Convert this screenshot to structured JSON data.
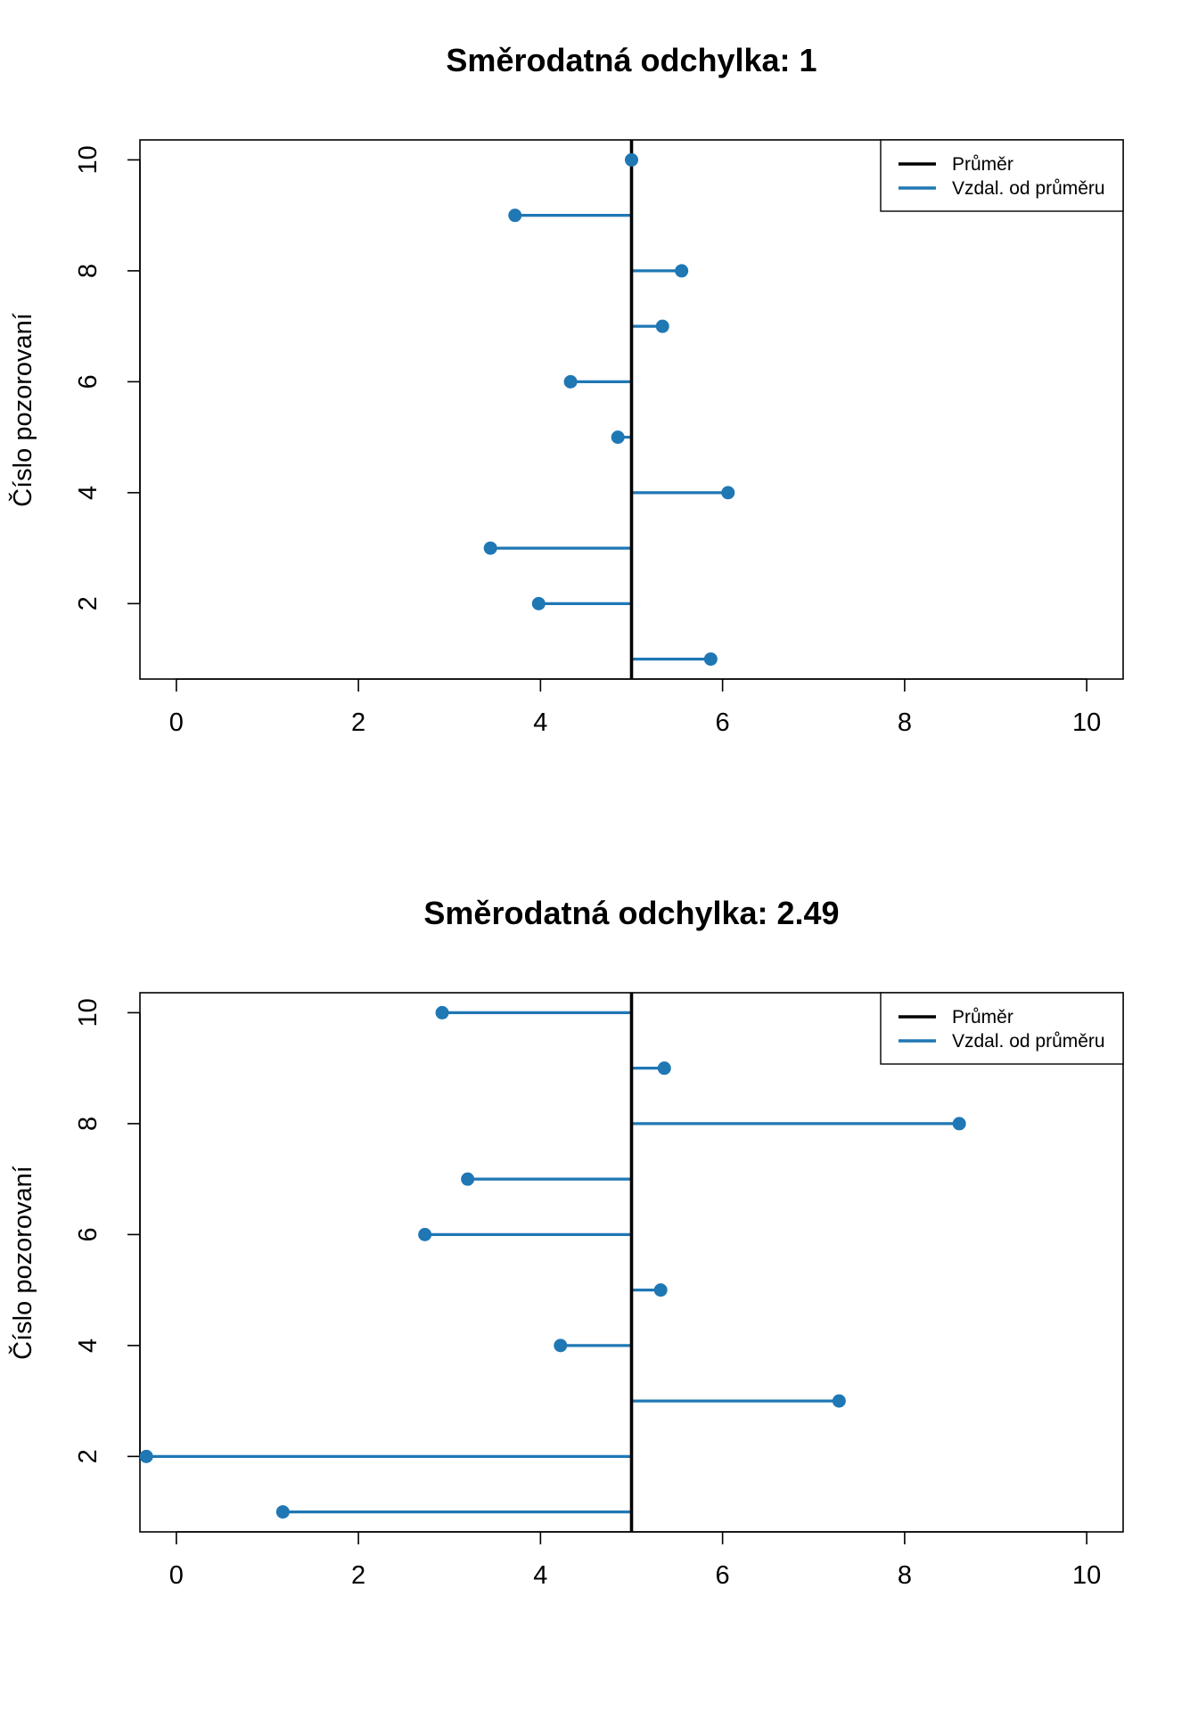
{
  "colors": {
    "mean_line": "#000000",
    "deviation": "#1f77b4",
    "background": "#ffffff"
  },
  "chart_data": [
    {
      "type": "scatter",
      "title": "Směrodatná odchylka: 1",
      "ylabel": "Číslo pozorovaní",
      "xlabel": "",
      "xlim": [
        -0.4,
        10.4
      ],
      "ylim": [
        0.64,
        10.36
      ],
      "x_ticks": [
        "0",
        "2",
        "4",
        "6",
        "8",
        "10"
      ],
      "y_ticks": [
        "2",
        "4",
        "6",
        "8",
        "10"
      ],
      "mean": 5.0,
      "legend": {
        "position": "top-right",
        "entries": [
          "Průměr",
          "Vzdal. od průměru"
        ]
      },
      "points": [
        {
          "obs": 1,
          "x": 5.87
        },
        {
          "obs": 2,
          "x": 3.98
        },
        {
          "obs": 3,
          "x": 3.45
        },
        {
          "obs": 4,
          "x": 6.06
        },
        {
          "obs": 5,
          "x": 4.85
        },
        {
          "obs": 6,
          "x": 4.33
        },
        {
          "obs": 7,
          "x": 5.34
        },
        {
          "obs": 8,
          "x": 5.55
        },
        {
          "obs": 9,
          "x": 3.72
        },
        {
          "obs": 10,
          "x": 5.0
        }
      ]
    },
    {
      "type": "scatter",
      "title": "Směrodatná odchylka: 2.49",
      "ylabel": "Číslo pozorovaní",
      "xlabel": "",
      "xlim": [
        -0.4,
        10.4
      ],
      "ylim": [
        0.64,
        10.36
      ],
      "x_ticks": [
        "0",
        "2",
        "4",
        "6",
        "8",
        "10"
      ],
      "y_ticks": [
        "2",
        "4",
        "6",
        "8",
        "10"
      ],
      "mean": 5.0,
      "legend": {
        "position": "top-right",
        "entries": [
          "Průměr",
          "Vzdal. od průměru"
        ]
      },
      "points": [
        {
          "obs": 1,
          "x": 1.17
        },
        {
          "obs": 2,
          "x": -0.33
        },
        {
          "obs": 3,
          "x": 7.28
        },
        {
          "obs": 4,
          "x": 4.22
        },
        {
          "obs": 5,
          "x": 5.32
        },
        {
          "obs": 6,
          "x": 2.73
        },
        {
          "obs": 7,
          "x": 3.2
        },
        {
          "obs": 8,
          "x": 8.6
        },
        {
          "obs": 9,
          "x": 5.36
        },
        {
          "obs": 10,
          "x": 2.92
        }
      ]
    }
  ]
}
